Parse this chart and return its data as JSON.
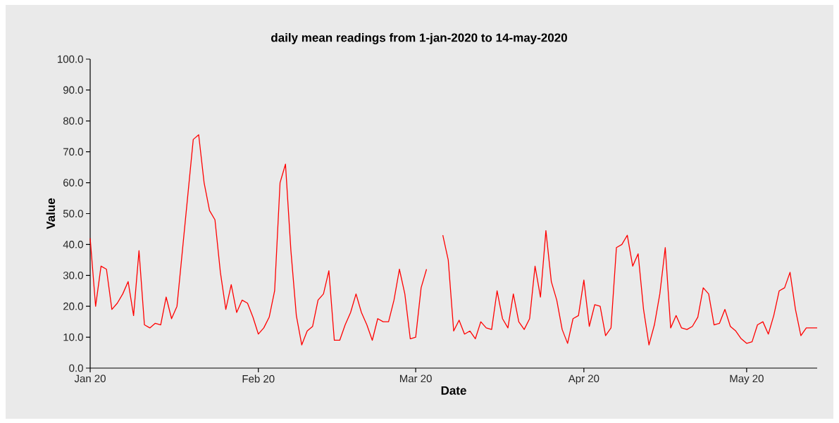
{
  "chart_data": {
    "type": "line",
    "title": "daily mean readings from 1-jan-2020 to 14-may-2020",
    "xlabel": "Date",
    "ylabel": "Value",
    "color": "#ff0000",
    "x": [
      "2020-01-01",
      "2020-01-02",
      "2020-01-03",
      "2020-01-04",
      "2020-01-05",
      "2020-01-06",
      "2020-01-07",
      "2020-01-08",
      "2020-01-09",
      "2020-01-10",
      "2020-01-11",
      "2020-01-12",
      "2020-01-13",
      "2020-01-14",
      "2020-01-15",
      "2020-01-16",
      "2020-01-17",
      "2020-01-18",
      "2020-01-19",
      "2020-01-20",
      "2020-01-21",
      "2020-01-22",
      "2020-01-23",
      "2020-01-24",
      "2020-01-25",
      "2020-01-26",
      "2020-01-27",
      "2020-01-28",
      "2020-01-29",
      "2020-01-30",
      "2020-01-31",
      "2020-02-01",
      "2020-02-02",
      "2020-02-03",
      "2020-02-04",
      "2020-02-05",
      "2020-02-06",
      "2020-02-07",
      "2020-02-08",
      "2020-02-09",
      "2020-02-10",
      "2020-02-11",
      "2020-02-12",
      "2020-02-13",
      "2020-02-14",
      "2020-02-15",
      "2020-02-16",
      "2020-02-17",
      "2020-02-18",
      "2020-02-19",
      "2020-02-20",
      "2020-02-21",
      "2020-02-22",
      "2020-02-23",
      "2020-02-24",
      "2020-02-25",
      "2020-02-26",
      "2020-02-27",
      "2020-02-28",
      "2020-02-29",
      "2020-03-01",
      "2020-03-02",
      "2020-03-03",
      "2020-03-04",
      "2020-03-05",
      "2020-03-06",
      "2020-03-07",
      "2020-03-08",
      "2020-03-09",
      "2020-03-10",
      "2020-03-11",
      "2020-03-12",
      "2020-03-13",
      "2020-03-14",
      "2020-03-15",
      "2020-03-16",
      "2020-03-17",
      "2020-03-18",
      "2020-03-19",
      "2020-03-20",
      "2020-03-21",
      "2020-03-22",
      "2020-03-23",
      "2020-03-24",
      "2020-03-25",
      "2020-03-26",
      "2020-03-27",
      "2020-03-28",
      "2020-03-29",
      "2020-03-30",
      "2020-03-31",
      "2020-04-01",
      "2020-04-02",
      "2020-04-03",
      "2020-04-04",
      "2020-04-05",
      "2020-04-06",
      "2020-04-07",
      "2020-04-08",
      "2020-04-09",
      "2020-04-10",
      "2020-04-11",
      "2020-04-12",
      "2020-04-13",
      "2020-04-14",
      "2020-04-15",
      "2020-04-16",
      "2020-04-17",
      "2020-04-18",
      "2020-04-19",
      "2020-04-20",
      "2020-04-21",
      "2020-04-22",
      "2020-04-23",
      "2020-04-24",
      "2020-04-25",
      "2020-04-26",
      "2020-04-27",
      "2020-04-28",
      "2020-04-29",
      "2020-04-30",
      "2020-05-01",
      "2020-05-02",
      "2020-05-03",
      "2020-05-04",
      "2020-05-05",
      "2020-05-06",
      "2020-05-07",
      "2020-05-08",
      "2020-05-09",
      "2020-05-10",
      "2020-05-11",
      "2020-05-12",
      "2020-05-13",
      "2020-05-14"
    ],
    "values": [
      42,
      20,
      33,
      32,
      19,
      21,
      24,
      28,
      17,
      38,
      14,
      13,
      14.5,
      14,
      23,
      16,
      20,
      38,
      56,
      74,
      75.5,
      60,
      51,
      48,
      31,
      19,
      27,
      18,
      22,
      21,
      16.5,
      11,
      13,
      16.5,
      25,
      60,
      66,
      38,
      17,
      7.5,
      12,
      13.5,
      22,
      24,
      31.5,
      9,
      9,
      14,
      18,
      24,
      18,
      14,
      9,
      16,
      15,
      15,
      22,
      32,
      24,
      9.5,
      10,
      26,
      32,
      null,
      null,
      43,
      35,
      12,
      15.5,
      11,
      12,
      9.5,
      15,
      13,
      12.5,
      25,
      16,
      13,
      24,
      15,
      12.5,
      16,
      33,
      23,
      44.5,
      28,
      22,
      12.5,
      8,
      16,
      17,
      28.5,
      13.5,
      20.5,
      20,
      10.5,
      13,
      39,
      40,
      43,
      33,
      37,
      19,
      7.5,
      14,
      24,
      39,
      13,
      17,
      13,
      12.5,
      13.5,
      16.5,
      26,
      24,
      14,
      14.5,
      19,
      13.5,
      12,
      9.5,
      8,
      8.5,
      14,
      15,
      11,
      17,
      25,
      26,
      31,
      19,
      10.5,
      13,
      13,
      13
    ],
    "xlim": [
      "2020-01-01",
      "2020-05-14"
    ],
    "xticks": [
      {
        "value": "2020-01-01",
        "label": "Jan 20"
      },
      {
        "value": "2020-02-01",
        "label": "Feb 20"
      },
      {
        "value": "2020-03-01",
        "label": "Mar 20"
      },
      {
        "value": "2020-04-01",
        "label": "Apr 20"
      },
      {
        "value": "2020-05-01",
        "label": "May 20"
      }
    ],
    "ylim": [
      0,
      100
    ],
    "yticks": [
      {
        "value": 0,
        "label": "0.0"
      },
      {
        "value": 10,
        "label": "10.0"
      },
      {
        "value": 20,
        "label": "20.0"
      },
      {
        "value": 30,
        "label": "30.0"
      },
      {
        "value": 40,
        "label": "40.0"
      },
      {
        "value": 50,
        "label": "50.0"
      },
      {
        "value": 60,
        "label": "60.0"
      },
      {
        "value": 70,
        "label": "70.0"
      },
      {
        "value": 80,
        "label": "80.0"
      },
      {
        "value": 90,
        "label": "90.0"
      },
      {
        "value": 100,
        "label": "100.0"
      }
    ]
  }
}
